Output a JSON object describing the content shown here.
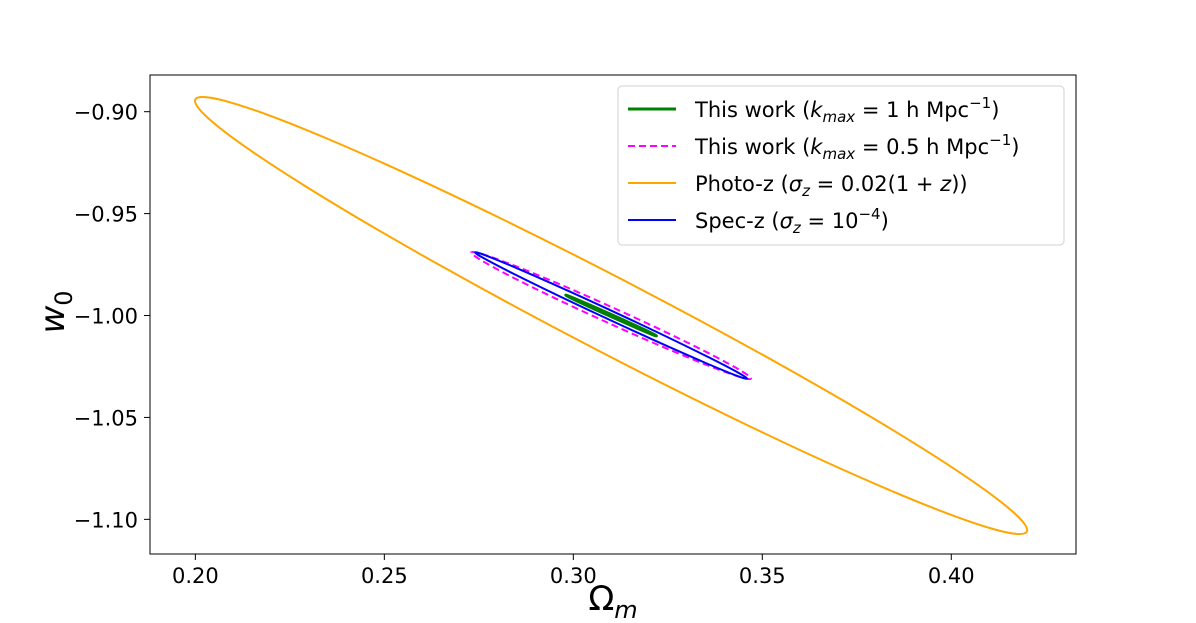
{
  "chart_data": {
    "type": "line",
    "xlabel": "Ω",
    "xlabel_sub": "m",
    "ylabel": "w",
    "ylabel_sub": "0",
    "xlim": [
      0.188,
      0.433
    ],
    "ylim": [
      -1.117,
      -0.882
    ],
    "xticks": [
      {
        "value": 0.2,
        "label": "0.20"
      },
      {
        "value": 0.25,
        "label": "0.25"
      },
      {
        "value": 0.3,
        "label": "0.30"
      },
      {
        "value": 0.35,
        "label": "0.35"
      },
      {
        "value": 0.4,
        "label": "0.40"
      }
    ],
    "yticks": [
      {
        "value": -0.9,
        "label": "−0.90"
      },
      {
        "value": -0.95,
        "label": "−0.95"
      },
      {
        "value": -1.0,
        "label": "−1.00"
      },
      {
        "value": -1.05,
        "label": "−1.05"
      },
      {
        "value": -1.1,
        "label": "−1.10"
      }
    ],
    "grid": false,
    "legend_position": "top-right",
    "center": {
      "x": 0.31,
      "y": -1.0
    },
    "series": [
      {
        "legend": [
          {
            "text": "This work (",
            "style": "normal"
          },
          {
            "text": "k",
            "style": "italic"
          },
          {
            "text": "max",
            "style": "italic-sub"
          },
          {
            "text": " = 1 h Mpc",
            "style": "normal"
          },
          {
            "text": "−1",
            "style": "sup"
          },
          {
            "text": ")",
            "style": "normal"
          }
        ],
        "color": "#008000",
        "dash": "solid",
        "width": 3,
        "extreme": {
          "x": 0.322,
          "y": -1.01
        },
        "minor_half_width": 0.00025
      },
      {
        "legend": [
          {
            "text": "This work (",
            "style": "normal"
          },
          {
            "text": "k",
            "style": "italic"
          },
          {
            "text": "max",
            "style": "italic-sub"
          },
          {
            "text": " = 0.5 h Mpc",
            "style": "normal"
          },
          {
            "text": "−1",
            "style": "sup"
          },
          {
            "text": ")",
            "style": "normal"
          }
        ],
        "color": "#ff00ff",
        "dash": "dashed",
        "width": 2,
        "extreme": {
          "x": 0.347,
          "y": -1.031
        },
        "minor_half_width": 0.0021
      },
      {
        "legend": [
          {
            "text": "Photo-z (",
            "style": "normal"
          },
          {
            "text": "σ",
            "style": "italic"
          },
          {
            "text": "z",
            "style": "italic-sub"
          },
          {
            "text": " = 0.02(1 + ",
            "style": "normal"
          },
          {
            "text": "z",
            "style": "italic"
          },
          {
            "text": "))",
            "style": "normal"
          }
        ],
        "color": "#ffa500",
        "dash": "solid",
        "width": 2,
        "extreme": {
          "x": 0.42,
          "y": -1.106
        },
        "minor_half_width": 0.0098
      },
      {
        "legend": [
          {
            "text": "Spec-z (",
            "style": "normal"
          },
          {
            "text": "σ",
            "style": "italic"
          },
          {
            "text": "z",
            "style": "italic-sub"
          },
          {
            "text": " = 10",
            "style": "normal"
          },
          {
            "text": "−4",
            "style": "sup"
          },
          {
            "text": ")",
            "style": "normal"
          }
        ],
        "color": "#0000ff",
        "dash": "solid",
        "width": 2,
        "extreme": {
          "x": 0.346,
          "y": -1.031
        },
        "minor_half_width": 0.0012
      }
    ],
    "plot_order": [
      2,
      1,
      3,
      0
    ]
  }
}
